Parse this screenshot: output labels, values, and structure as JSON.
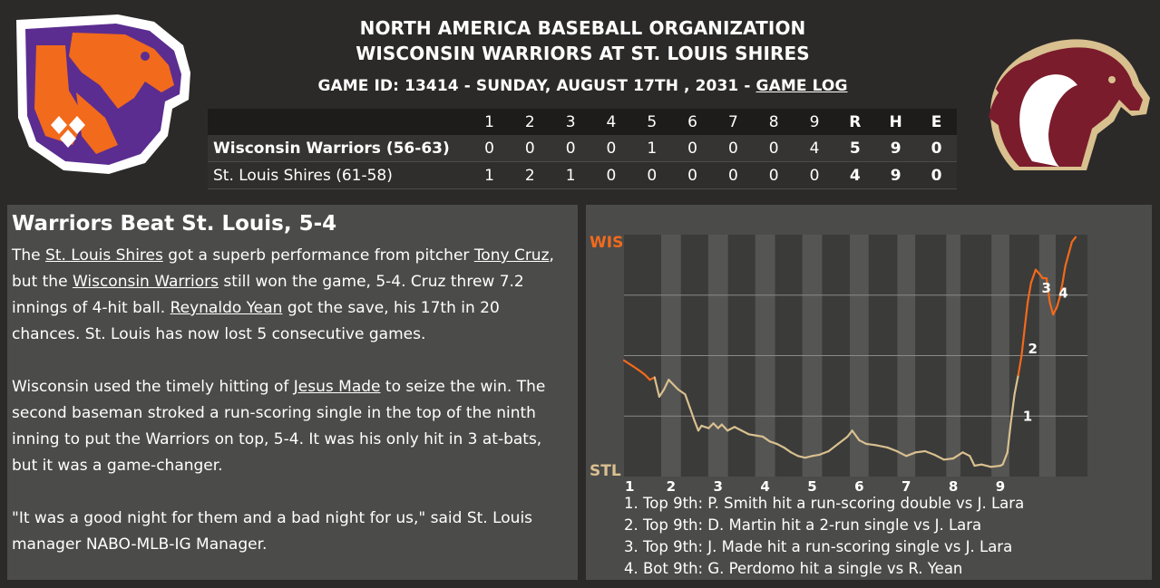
{
  "header": {
    "league": "NORTH AMERICA BASEBALL ORGANIZATION",
    "matchup": "WISCONSIN WARRIORS AT ST. LOUIS SHIRES",
    "game_info": "GAME ID: 13414 - SUNDAY, AUGUST 17TH , 2031 - ",
    "game_log_link": "GAME LOG"
  },
  "linescore": {
    "columns": [
      "1",
      "2",
      "3",
      "4",
      "5",
      "6",
      "7",
      "8",
      "9",
      "R",
      "H",
      "E"
    ],
    "away": {
      "team": "Wisconsin Warriors (56-63)",
      "scores": [
        "0",
        "0",
        "0",
        "0",
        "1",
        "0",
        "0",
        "0",
        "4",
        "5",
        "9",
        "0"
      ]
    },
    "home": {
      "team": "St. Louis Shires (61-58)",
      "scores": [
        "1",
        "2",
        "1",
        "0",
        "0",
        "0",
        "0",
        "0",
        "0",
        "4",
        "9",
        "0"
      ]
    }
  },
  "story": {
    "headline": "Warriors Beat St. Louis, 5-4",
    "p1": {
      "t1": "The ",
      "link1": "St. Louis Shires",
      "t2": " got a superb performance from pitcher ",
      "link2": "Tony Cruz",
      "t3": ",",
      "t4": "but the ",
      "link3": "Wisconsin Warriors",
      "t5": " still won the game, 5-4. Cruz threw 7.2",
      "t6": "innings of 4-hit ball. ",
      "link4": "Reynaldo Yean",
      "t7": " got the save, his 17th in 20",
      "t8": "chances. St. Louis has now lost 5 consecutive games."
    },
    "p2": {
      "t1": "Wisconsin used the timely hitting of ",
      "link1": "Jesus Made",
      "t2": " to seize the win. The",
      "t3": "second baseman stroked a run-scoring single in the top of the ninth",
      "t4": "inning to put the Warriors on top, 5-4. It was his only hit in 3 at-bats,",
      "t5": "but it was a game-changer."
    },
    "p3": {
      "t1": "\"It was a good night for them and a bad night for us,\" said St. Louis",
      "t2": "manager NABO-MLB-IG Manager."
    }
  },
  "colors": {
    "away": "#f26a1b",
    "home": "#d9c08f",
    "background": "#2b2a29",
    "panel": "#4b4b4a"
  },
  "chart_data": {
    "type": "line",
    "title": "",
    "y_top_label": "WIS",
    "y_bottom_label": "STL",
    "ylim": [
      0,
      1
    ],
    "x_ticks": [
      "1",
      "2",
      "3",
      "4",
      "5",
      "6",
      "7",
      "8",
      "9"
    ],
    "x_max": 9.85,
    "inning_band_widths": [
      0.42,
      0.42,
      0.42,
      0.42,
      0.4,
      0.38,
      0.3,
      0.38,
      0.35
    ],
    "series": [
      {
        "points": [
          [
            0,
            0.48
          ],
          [
            0.2,
            0.455
          ],
          [
            0.35,
            0.435
          ],
          [
            0.45,
            0.42
          ],
          [
            0.55,
            0.4
          ],
          [
            0.65,
            0.41
          ],
          [
            0.75,
            0.33
          ],
          [
            0.85,
            0.36
          ],
          [
            0.95,
            0.4
          ],
          [
            1.05,
            0.38
          ],
          [
            1.15,
            0.36
          ],
          [
            1.3,
            0.34
          ],
          [
            1.4,
            0.285
          ],
          [
            1.5,
            0.23
          ],
          [
            1.58,
            0.19
          ],
          [
            1.65,
            0.21
          ],
          [
            1.72,
            0.205
          ],
          [
            1.8,
            0.2
          ],
          [
            1.9,
            0.22
          ],
          [
            2.0,
            0.2
          ],
          [
            2.08,
            0.215
          ],
          [
            2.2,
            0.19
          ],
          [
            2.35,
            0.205
          ],
          [
            2.5,
            0.19
          ],
          [
            2.65,
            0.175
          ],
          [
            2.8,
            0.17
          ],
          [
            2.95,
            0.165
          ],
          [
            3.1,
            0.145
          ],
          [
            3.25,
            0.135
          ],
          [
            3.4,
            0.12
          ],
          [
            3.55,
            0.1
          ],
          [
            3.7,
            0.085
          ],
          [
            3.85,
            0.078
          ],
          [
            4.0,
            0.085
          ],
          [
            4.15,
            0.09
          ],
          [
            4.35,
            0.105
          ],
          [
            4.55,
            0.135
          ],
          [
            4.75,
            0.165
          ],
          [
            4.85,
            0.19
          ],
          [
            5.0,
            0.15
          ],
          [
            5.15,
            0.135
          ],
          [
            5.35,
            0.13
          ],
          [
            5.6,
            0.12
          ],
          [
            5.8,
            0.105
          ],
          [
            6.0,
            0.085
          ],
          [
            6.2,
            0.1
          ],
          [
            6.4,
            0.105
          ],
          [
            6.6,
            0.09
          ],
          [
            6.8,
            0.07
          ],
          [
            7.0,
            0.075
          ],
          [
            7.2,
            0.1
          ],
          [
            7.35,
            0.085
          ],
          [
            7.45,
            0.045
          ],
          [
            7.6,
            0.05
          ],
          [
            7.8,
            0.04
          ],
          [
            8.0,
            0.045
          ],
          [
            8.05,
            0.05
          ],
          [
            8.15,
            0.1
          ],
          [
            8.22,
            0.22
          ],
          [
            8.3,
            0.34
          ],
          [
            8.38,
            0.42
          ],
          [
            8.45,
            0.5
          ],
          [
            8.52,
            0.62
          ],
          [
            8.58,
            0.72
          ],
          [
            8.65,
            0.8
          ],
          [
            8.75,
            0.855
          ],
          [
            8.82,
            0.84
          ],
          [
            8.9,
            0.82
          ],
          [
            8.98,
            0.82
          ],
          [
            9.05,
            0.72
          ],
          [
            9.12,
            0.67
          ],
          [
            9.2,
            0.7
          ],
          [
            9.26,
            0.74
          ],
          [
            9.32,
            0.8
          ],
          [
            9.38,
            0.87
          ],
          [
            9.45,
            0.92
          ],
          [
            9.52,
            0.97
          ],
          [
            9.6,
            0.99
          ]
        ]
      }
    ],
    "annotations": [
      {
        "label": "1",
        "x": 8.4,
        "y": 0.23
      },
      {
        "label": "2",
        "x": 8.51,
        "y": 0.51
      },
      {
        "label": "3",
        "x": 8.8,
        "y": 0.76
      },
      {
        "label": "4",
        "x": 9.16,
        "y": 0.74
      }
    ]
  },
  "plays": [
    "1. Top 9th: P. Smith hit a run-scoring double vs J. Lara",
    "2. Top 9th: D. Martin hit a 2-run single vs J. Lara",
    "3. Top 9th: J. Made hit a run-scoring single vs J. Lara",
    "4. Bot 9th: G. Perdomo hit a single vs R. Yean"
  ]
}
